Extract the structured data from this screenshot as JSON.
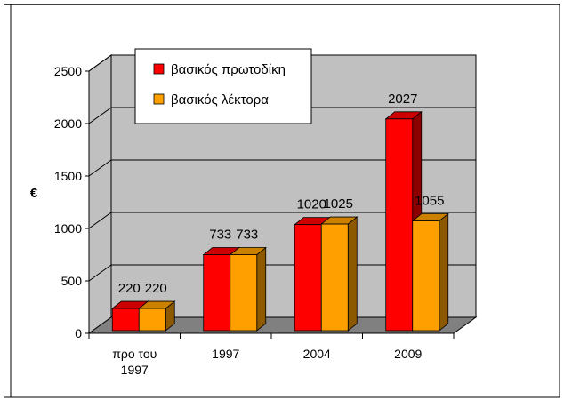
{
  "chart_data": {
    "type": "bar",
    "style": "3d",
    "categories": [
      "προ του 1997",
      "1997",
      "2004",
      "2009"
    ],
    "series": [
      {
        "name": "βασικός πρωτοδίκη",
        "values": [
          220,
          733,
          1020,
          2027
        ],
        "color": "#ff0000"
      },
      {
        "name": "βασικός λέκτορα",
        "values": [
          220,
          733,
          1025,
          1055
        ],
        "color": "#ffa000"
      }
    ],
    "ylabel": "€",
    "ylim": [
      0,
      2500
    ],
    "yticks": [
      0,
      500,
      1000,
      1500,
      2000,
      2500
    ],
    "grid": true,
    "legend": "top-left",
    "wall_color": "#c0c0c0",
    "floor_color": "#808080"
  }
}
